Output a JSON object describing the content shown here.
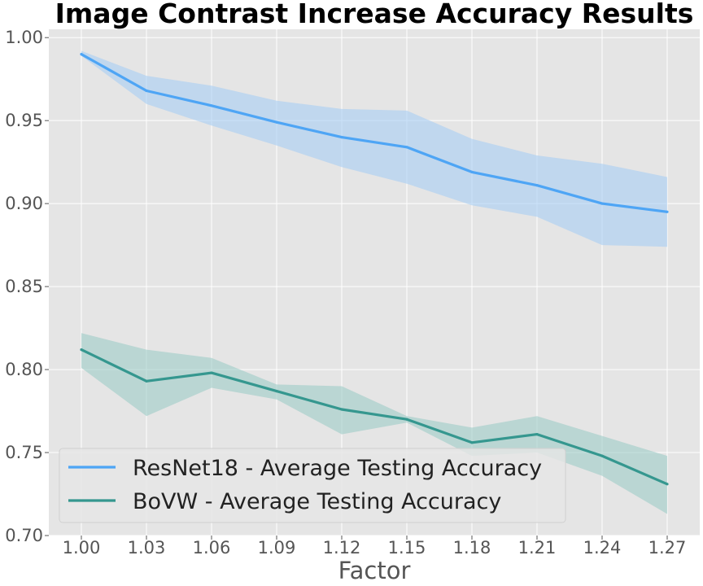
{
  "chart_data": {
    "type": "line",
    "title": "Image Contrast Increase Accuracy Results",
    "xlabel": "Factor",
    "ylabel": "",
    "x": [
      1.0,
      1.03,
      1.06,
      1.09,
      1.12,
      1.15,
      1.18,
      1.21,
      1.24,
      1.27
    ],
    "x_tick_labels": [
      "1.00",
      "1.03",
      "1.06",
      "1.09",
      "1.12",
      "1.15",
      "1.18",
      "1.21",
      "1.24",
      "1.27"
    ],
    "y_ticks": [
      0.7,
      0.75,
      0.8,
      0.85,
      0.9,
      0.95,
      1.0
    ],
    "y_tick_labels": [
      "0.70",
      "0.75",
      "0.80",
      "0.85",
      "0.90",
      "0.95",
      "1.00"
    ],
    "ylim": [
      0.7,
      1.005
    ],
    "xlim": [
      0.985,
      1.285
    ],
    "grid": true,
    "legend_position": "lower-left",
    "series": [
      {
        "name": "ResNet18 - Average Testing Accuracy",
        "color": "#4ea5f5",
        "band_color": "#a6cdf3",
        "values": [
          0.99,
          0.968,
          0.959,
          0.949,
          0.94,
          0.934,
          0.919,
          0.911,
          0.9,
          0.895
        ],
        "upper": [
          0.992,
          0.977,
          0.971,
          0.962,
          0.957,
          0.956,
          0.939,
          0.929,
          0.924,
          0.916
        ],
        "lower": [
          0.989,
          0.96,
          0.947,
          0.935,
          0.922,
          0.912,
          0.899,
          0.892,
          0.875,
          0.874
        ]
      },
      {
        "name": "BoVW - Average Testing Accuracy",
        "color": "#35978f",
        "band_color": "#9dccc6",
        "values": [
          0.812,
          0.793,
          0.798,
          0.787,
          0.776,
          0.77,
          0.756,
          0.761,
          0.748,
          0.731
        ],
        "upper": [
          0.822,
          0.812,
          0.807,
          0.791,
          0.79,
          0.772,
          0.765,
          0.772,
          0.76,
          0.748
        ],
        "lower": [
          0.801,
          0.772,
          0.789,
          0.782,
          0.761,
          0.768,
          0.748,
          0.75,
          0.736,
          0.713
        ]
      }
    ]
  }
}
